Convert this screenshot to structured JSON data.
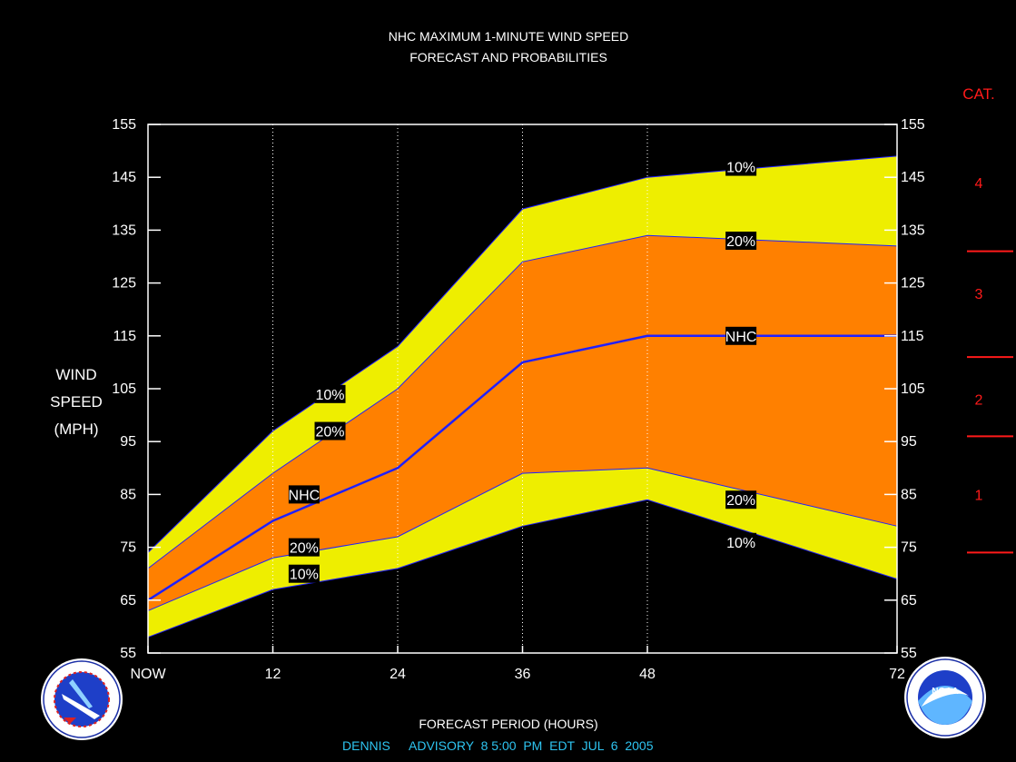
{
  "colors": {
    "background": "#000000",
    "text": "#ffffff",
    "footer_text": "#2ec4f0",
    "band_10": "#eeee00",
    "band_20": "#ff8000",
    "nhc_line": "#2020ff",
    "category": "#ff1a1a",
    "grid": "#ffffff",
    "plot_border": "#ffffff"
  },
  "header": {
    "title_line1": "NHC MAXIMUM 1-MINUTE WIND SPEED",
    "title_line2": "FORECAST AND PROBABILITIES"
  },
  "footer": {
    "xlabel": "FORECAST PERIOD (HOURS)",
    "advisory_name": "DENNIS",
    "advisory_text": "ADVISORY  8 5:00  PM  EDT  JUL  6  2005"
  },
  "logos": {
    "left": "weather-service-logo",
    "right": "noaa-logo",
    "right_text": "NOAA"
  },
  "chart_data": {
    "type": "area",
    "title": "NHC MAXIMUM 1-MINUTE WIND SPEED FORECAST AND PROBABILITIES",
    "ylabel_lines": [
      "WIND",
      "SPEED",
      "(MPH)"
    ],
    "xlabel": "FORECAST PERIOD (HOURS)",
    "ylim": [
      55,
      155
    ],
    "xlim": [
      0,
      72
    ],
    "y_ticks": [
      55,
      65,
      75,
      85,
      95,
      105,
      115,
      125,
      135,
      145,
      155
    ],
    "x_ticks": [
      {
        "value": 0,
        "label": "NOW"
      },
      {
        "value": 12,
        "label": "12"
      },
      {
        "value": 24,
        "label": "24"
      },
      {
        "value": 36,
        "label": "36"
      },
      {
        "value": 48,
        "label": "48"
      },
      {
        "value": 72,
        "label": "72"
      }
    ],
    "x_gridlines": [
      12,
      24,
      36,
      48
    ],
    "x": [
      0,
      12,
      24,
      36,
      48,
      72
    ],
    "series": [
      {
        "name": "10%",
        "role": "upper_10",
        "values": [
          74,
          97,
          113,
          139,
          145,
          149
        ]
      },
      {
        "name": "20%",
        "role": "upper_20",
        "values": [
          71,
          89,
          105,
          129,
          134,
          132
        ]
      },
      {
        "name": "NHC",
        "role": "nhc",
        "values": [
          65,
          80,
          90,
          110,
          115,
          115
        ]
      },
      {
        "name": "20%",
        "role": "lower_20",
        "values": [
          63,
          73,
          77,
          89,
          90,
          79
        ]
      },
      {
        "name": "10%",
        "role": "lower_10",
        "values": [
          58,
          67,
          71,
          79,
          84,
          69
        ]
      }
    ],
    "annotations": [
      {
        "text": "10%",
        "x": 17.5,
        "y": 104
      },
      {
        "text": "20%",
        "x": 17.5,
        "y": 97
      },
      {
        "text": "NHC",
        "x": 15,
        "y": 85
      },
      {
        "text": "20%",
        "x": 15,
        "y": 75
      },
      {
        "text": "10%",
        "x": 15,
        "y": 70
      },
      {
        "text": "10%",
        "x": 57,
        "y": 147
      },
      {
        "text": "20%",
        "x": 57,
        "y": 133
      },
      {
        "text": "NHC",
        "x": 57,
        "y": 115
      },
      {
        "text": "20%",
        "x": 57,
        "y": 84
      },
      {
        "text": "10%",
        "x": 57,
        "y": 76
      }
    ],
    "categories": {
      "label": "CAT.",
      "labels": [
        {
          "text": "4",
          "y": 144
        },
        {
          "text": "3",
          "y": 123
        },
        {
          "text": "2",
          "y": 103
        },
        {
          "text": "1",
          "y": 85
        }
      ],
      "boundaries": [
        131,
        111,
        96,
        74
      ]
    }
  }
}
